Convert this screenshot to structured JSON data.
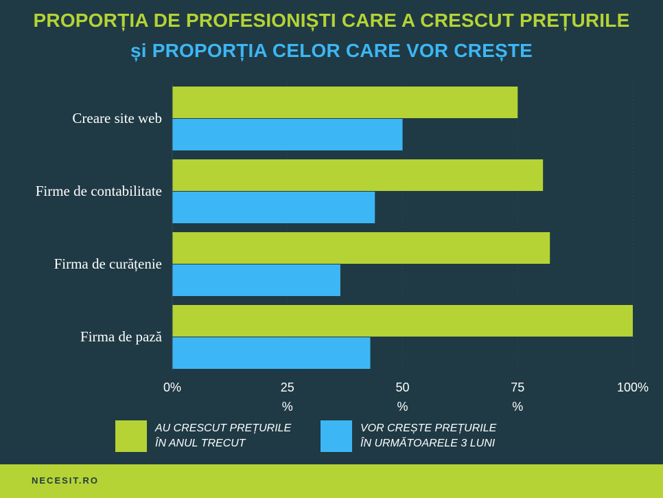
{
  "title": {
    "line1": "PROPORȚIA DE PROFESIONIȘTI CARE A CRESCUT PREȚURILE",
    "line2": "și PROPORȚIA CELOR CARE VOR CREȘTE"
  },
  "colors": {
    "background": "#1f3a44",
    "green": "#b5d334",
    "blue": "#3db6f5"
  },
  "chart_data": {
    "type": "bar",
    "orientation": "horizontal",
    "categories": [
      "Creare site web",
      "Firme de contabilitate",
      "Firma de curățenie",
      "Firma de pază"
    ],
    "series": [
      {
        "name": "AU CRESCUT PREȚURILE ÎN ANUL TRECUT",
        "values": [
          75,
          80.5,
          82,
          100
        ]
      },
      {
        "name": "VOR CREȘTE PREȚURILE ÎN URMĂTOARELE 3 LUNI",
        "values": [
          50,
          44,
          36.5,
          43
        ]
      }
    ],
    "xlim": [
      0,
      100
    ],
    "xticks": [
      0,
      25,
      50,
      75,
      100
    ],
    "tick_labels": [
      [
        "0%"
      ],
      [
        "25",
        "%"
      ],
      [
        "50",
        "%"
      ],
      [
        "75",
        "%"
      ],
      [
        "100%"
      ]
    ],
    "grid": true
  },
  "legend": {
    "items": [
      {
        "line1": "AU CRESCUT PREȚURILE",
        "line2": "ÎN ANUL TRECUT"
      },
      {
        "line1": "VOR CREȘTE PREȚURILE",
        "line2": "ÎN URMĂTOARELE 3 LUNI"
      }
    ]
  },
  "footer": {
    "brand": "NECESIT.RO"
  }
}
